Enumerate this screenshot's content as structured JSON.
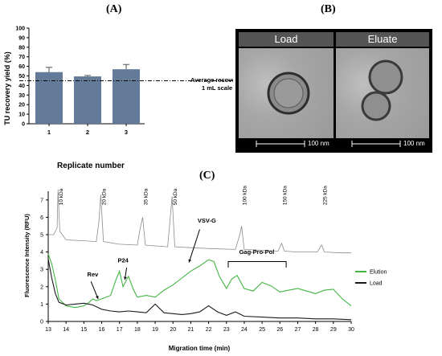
{
  "panels": {
    "a": "(A)",
    "b": "(B)",
    "c": "(C)"
  },
  "chart_data": [
    {
      "type": "bar",
      "panel": "(A)",
      "categories": [
        "1",
        "2",
        "3"
      ],
      "values": [
        54,
        49.5,
        57
      ],
      "errors": [
        5,
        1,
        5
      ],
      "xlabel": "Replicate number",
      "ylabel": "TU recovery yield (%)",
      "ylim": [
        0,
        100
      ],
      "yticks": [
        "0",
        "10",
        "20",
        "30",
        "40",
        "50",
        "60",
        "70",
        "80",
        "90",
        "100"
      ],
      "reference_line": {
        "value": 45,
        "label_line1": "Average recovery",
        "label_line2": "1 mL scale"
      },
      "bar_color": "#647a99"
    },
    {
      "type": "line",
      "panel": "(C)",
      "xlabel": "Migration time (min)",
      "ylabel": "Fluorescence Intensity (RFU)",
      "xlim": [
        13,
        30
      ],
      "ylim": [
        0,
        7.5
      ],
      "xticks": [
        "13",
        "14",
        "15",
        "16",
        "17",
        "18",
        "19",
        "20",
        "21",
        "22",
        "23",
        "24",
        "25",
        "26",
        "27",
        "28",
        "29",
        "30"
      ],
      "yticks": [
        "0",
        "1",
        "2",
        "3",
        "4",
        "5",
        "6",
        "7"
      ],
      "ladder_labels": [
        {
          "text": "10 kDa",
          "x": 13.55
        },
        {
          "text": "20 kDa",
          "x": 15.95
        },
        {
          "text": "35 kDa",
          "x": 18.3
        },
        {
          "text": "50 kDa",
          "x": 19.95
        },
        {
          "text": "100 kDa",
          "x": 23.85
        },
        {
          "text": "150 kDa",
          "x": 26.1
        },
        {
          "text": "225 kDa",
          "x": 28.35
        }
      ],
      "annotations": [
        {
          "text": "Rev",
          "x": 15.5,
          "y": 2.6
        },
        {
          "text": "P24",
          "x": 17.2,
          "y": 3.4
        },
        {
          "text": "VSV-G",
          "x": 21.9,
          "y": 5.7
        },
        {
          "text": "Gag-Pro-Pol",
          "x": 24.7,
          "y": 3.8
        }
      ],
      "series": [
        {
          "name": "",
          "color": "#8c8c8c",
          "x": [
            13,
            13.3,
            13.5,
            13.55,
            13.65,
            14,
            15,
            15.7,
            15.85,
            15.95,
            16.1,
            17,
            18,
            18.15,
            18.3,
            18.45,
            19,
            19.7,
            19.85,
            19.95,
            20.1,
            21,
            22,
            23.5,
            23.75,
            23.85,
            24,
            25,
            25.9,
            26.05,
            26.1,
            26.25,
            27,
            28.1,
            28.3,
            28.35,
            28.5,
            29.5,
            30
          ],
          "y": [
            5.0,
            5.0,
            5.4,
            7.6,
            5.2,
            4.7,
            4.65,
            4.6,
            5.8,
            7.3,
            4.6,
            4.45,
            4.4,
            5.3,
            6.0,
            4.4,
            4.35,
            4.3,
            6.0,
            7.2,
            4.3,
            4.25,
            4.2,
            4.15,
            5.0,
            5.5,
            4.15,
            4.1,
            4.05,
            4.4,
            4.5,
            4.05,
            4.0,
            4.0,
            4.35,
            4.4,
            4.0,
            3.95,
            3.95
          ]
        },
        {
          "name": "Elution",
          "color": "#43b543",
          "x": [
            13,
            13.2,
            13.4,
            13.6,
            14,
            14.5,
            15,
            15.3,
            15.5,
            15.7,
            16,
            16.5,
            16.8,
            17,
            17.2,
            17.5,
            17.8,
            18,
            18.5,
            19,
            19.5,
            20,
            20.5,
            21,
            21.5,
            22,
            22.3,
            22.6,
            23,
            23.3,
            23.6,
            24,
            24.5,
            25,
            25.5,
            26,
            26.5,
            27,
            27.5,
            28,
            28.5,
            29,
            29.5,
            30
          ],
          "y": [
            3.9,
            3.3,
            2.4,
            1.3,
            0.9,
            0.8,
            0.9,
            1.1,
            1.3,
            1.2,
            1.3,
            1.5,
            2.4,
            2.9,
            2.0,
            2.6,
            1.8,
            1.4,
            1.5,
            1.4,
            1.8,
            2.1,
            2.5,
            2.9,
            3.2,
            3.55,
            3.45,
            2.6,
            1.9,
            2.45,
            2.65,
            1.9,
            1.75,
            2.25,
            2.05,
            1.7,
            1.8,
            1.9,
            1.75,
            1.6,
            1.8,
            1.85,
            1.3,
            0.9
          ]
        },
        {
          "name": "Load",
          "color": "#1a1a1a",
          "x": [
            13,
            13.2,
            13.4,
            13.6,
            14,
            14.5,
            15,
            15.5,
            16,
            16.5,
            17,
            17.5,
            18,
            18.5,
            19,
            19.5,
            20,
            20.5,
            21,
            21.5,
            22,
            22.5,
            23,
            23.5,
            24,
            25,
            26,
            27,
            28,
            29,
            30
          ],
          "y": [
            3.6,
            2.5,
            1.6,
            1.1,
            0.95,
            1.0,
            1.05,
            0.95,
            0.7,
            0.6,
            0.55,
            0.6,
            0.55,
            0.5,
            1.0,
            0.5,
            0.45,
            0.4,
            0.45,
            0.55,
            0.9,
            0.55,
            0.35,
            0.55,
            0.3,
            0.25,
            0.2,
            0.2,
            0.15,
            0.15,
            0.1
          ]
        }
      ],
      "legend": "right",
      "annotation_color": "#000000"
    }
  ],
  "em": {
    "load_label": "Load",
    "eluate_label": "Eluate",
    "load_scale": "100 nm",
    "eluate_scale": "100 nm"
  }
}
